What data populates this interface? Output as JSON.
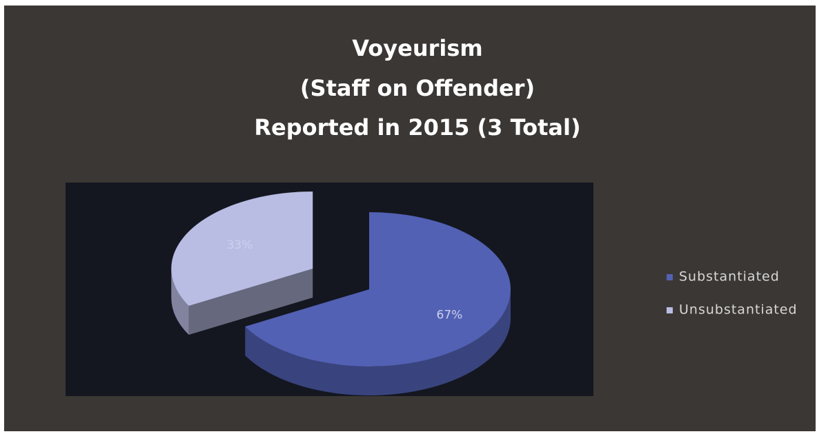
{
  "chart_data": {
    "type": "pie",
    "title": [
      "Voyeurism",
      "(Staff on Offender)",
      "Reported in 2015  (3 Total)"
    ],
    "categories": [
      "Substantiated",
      "Unsubstantiated"
    ],
    "values": [
      67,
      33
    ],
    "value_labels": [
      "67%",
      "33%"
    ],
    "colors": [
      "#5261b4",
      "#b9bde3"
    ],
    "legend": "right"
  }
}
